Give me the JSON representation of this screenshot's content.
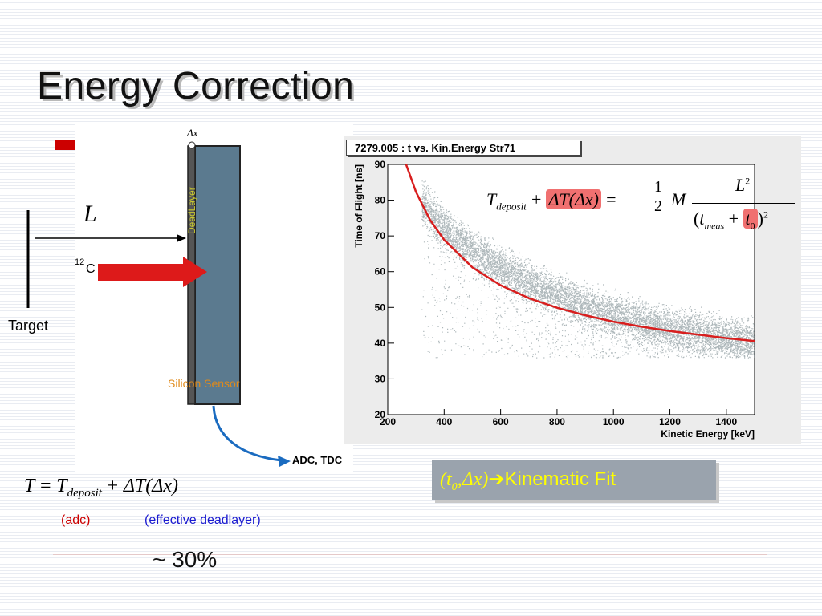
{
  "slide": {
    "title": "Energy Correction"
  },
  "diagram": {
    "delta_x_label": "Δx",
    "deadlayer_label": "DeadLayer",
    "silicon_label": "Silicon Sensor",
    "length_label": "L",
    "beam_mass_number": "12",
    "beam_element": "C",
    "target_label": "Target",
    "output_label": "ADC, TDC",
    "colors": {
      "sensor": "#5b7a8f",
      "deadlayer_text": "#c8c830",
      "silicon_text": "#e08a1a",
      "beam_arrow": "#dd1a1a",
      "output_arrow": "#1a6bc0"
    }
  },
  "plot": {
    "header": "7279.005 : t vs. Kin.Energy Str71",
    "formula": {
      "lhs_symbol": "T",
      "lhs_subscript": "deposit",
      "plus": "+",
      "delta_term": "ΔT(Δx)",
      "equals": "=",
      "half_num": "1",
      "half_den": "2",
      "mass": "M",
      "numerator": "L",
      "numerator_power": "2",
      "t_meas": "t",
      "t_meas_sub": "meas",
      "t0": "t",
      "t0_sub": "0",
      "den_power": "2"
    }
  },
  "chart_data": {
    "type": "scatter",
    "title": "7279.005 : t vs. Kin.Energy Str71",
    "xlabel": "Kinetic Energy [keV]",
    "ylabel": "Time of Flight [ns]",
    "xlim": [
      200,
      1500
    ],
    "ylim": [
      20,
      90
    ],
    "x_ticks": [
      200,
      400,
      600,
      800,
      1000,
      1200,
      1400
    ],
    "y_ticks": [
      20,
      30,
      40,
      50,
      60,
      70,
      80,
      90
    ],
    "series": [
      {
        "kind": "fit-curve",
        "color": "#d81e1e",
        "x": [
          265,
          300,
          350,
          400,
          500,
          600,
          700,
          800,
          900,
          1000,
          1100,
          1200,
          1300,
          1400,
          1500
        ],
        "y": [
          90,
          82.3,
          74.5,
          68.9,
          61.2,
          56.2,
          52.6,
          49.9,
          47.8,
          46.0,
          44.6,
          43.4,
          42.4,
          41.4,
          40.6
        ]
      },
      {
        "kind": "scatter-band",
        "color": "#6a7b82",
        "x_range": [
          320,
          1500
        ],
        "center_x": [
          320,
          400,
          500,
          600,
          700,
          800,
          900,
          1000,
          1100,
          1200,
          1300,
          1400,
          1500
        ],
        "center_y": [
          79,
          72,
          66,
          61,
          57,
          53.5,
          50.5,
          48,
          46,
          44.2,
          42.8,
          41.5,
          40.5
        ],
        "lower_y": 36
      }
    ]
  },
  "bottom": {
    "formula_T": "T",
    "formula_eq": "=",
    "formula_T2": "T",
    "formula_sub": "deposit",
    "formula_plus": "+",
    "formula_delta": "ΔT(Δx)",
    "adc_label": "(adc)",
    "deadlayer_label": "(effective deadlayer)",
    "percent": "~ 30%",
    "kin_box_vars": "(t",
    "kin_box_sub": "0",
    "kin_box_rest": ",Δx)",
    "kin_box_arrow": "➔",
    "kin_box_text": "Kinematic Fit",
    "kin_box_text_color": "#ffff00"
  }
}
